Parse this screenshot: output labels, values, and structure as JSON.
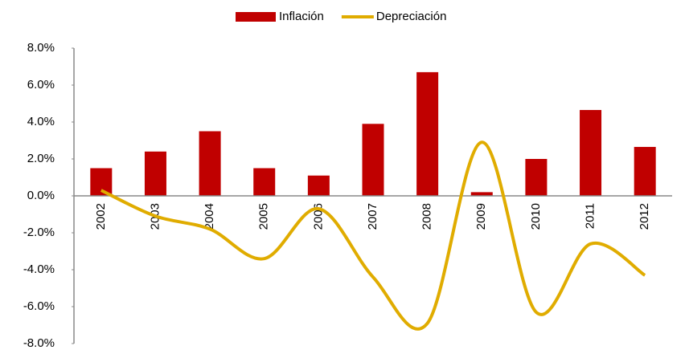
{
  "chart_data": {
    "type": "bar-line",
    "categories": [
      "2002",
      "2003",
      "2004",
      "2005",
      "2006",
      "2007",
      "2008",
      "2009",
      "2010",
      "2011",
      "2012"
    ],
    "series": [
      {
        "name": "Inflación",
        "type": "bar",
        "color": "#c00000",
        "values": [
          1.5,
          2.4,
          3.5,
          1.5,
          1.1,
          3.9,
          6.7,
          0.2,
          2.0,
          4.65,
          2.65
        ]
      },
      {
        "name": "Depreciación",
        "type": "line",
        "smooth": true,
        "color": "#e0ac00",
        "values": [
          0.3,
          -1.1,
          -1.8,
          -3.4,
          -0.7,
          -4.4,
          -6.9,
          2.9,
          -6.3,
          -2.6,
          -4.3
        ]
      }
    ],
    "ylim": [
      -8,
      8
    ],
    "yticks": [
      {
        "value": -8,
        "label": "-8.0%"
      },
      {
        "value": -6,
        "label": "-6.0%"
      },
      {
        "value": -4,
        "label": "-4.0%"
      },
      {
        "value": -2,
        "label": "-2.0%"
      },
      {
        "value": 0,
        "label": "0.0%"
      },
      {
        "value": 2,
        "label": "2.0%"
      },
      {
        "value": 4,
        "label": "4.0%"
      },
      {
        "value": 6,
        "label": "6.0%"
      },
      {
        "value": 8,
        "label": "8.0%"
      }
    ],
    "grid": false,
    "legend": "top"
  }
}
